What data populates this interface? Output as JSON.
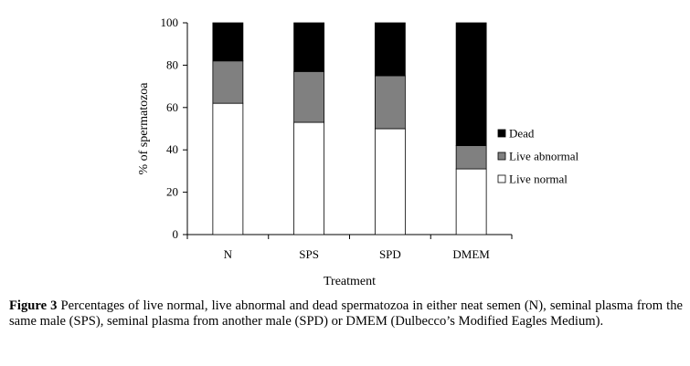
{
  "chart_data": {
    "type": "bar",
    "stacked": true,
    "categories": [
      "N",
      "SPS",
      "SPD",
      "DMEM"
    ],
    "series": [
      {
        "name": "Live normal",
        "values": [
          62,
          53,
          50,
          31
        ],
        "color": "#ffffff"
      },
      {
        "name": "Live abnormal",
        "values": [
          20,
          24,
          25,
          11
        ],
        "color": "#808080"
      },
      {
        "name": "Dead",
        "values": [
          18,
          23,
          25,
          58
        ],
        "color": "#000000"
      }
    ],
    "legend_order": [
      "Dead",
      "Live abnormal",
      "Live normal"
    ],
    "xlabel": "Treatment",
    "ylabel": "% of spermatozoa",
    "ylim": [
      0,
      100
    ],
    "yticks": [
      0,
      20,
      40,
      60,
      80,
      100
    ],
    "grid": false,
    "legend": "right"
  },
  "caption": {
    "label": "Figure 3",
    "text": " Percentages of live normal, live abnormal and dead spermatozoa in either neat semen (N), seminal plasma from the same male (SPS), seminal plasma from another male (SPD) or DMEM (Dulbecco’s Modified Eagles Medium)."
  }
}
